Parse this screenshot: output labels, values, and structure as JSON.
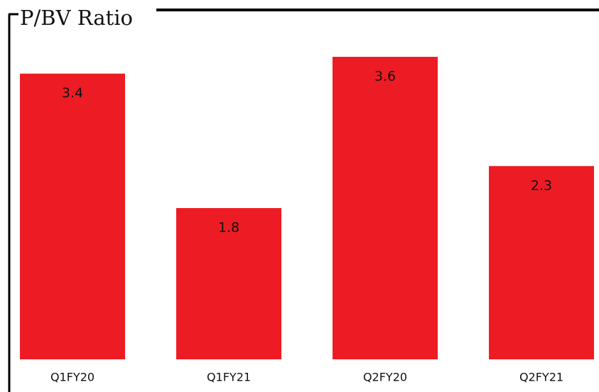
{
  "chart_data": {
    "type": "bar",
    "title": "P/BV Ratio",
    "categories": [
      "Q1FY20",
      "Q1FY21",
      "Q2FY20",
      "Q2FY21"
    ],
    "values": [
      3.4,
      1.8,
      3.6,
      2.3
    ],
    "color": "#ed1c24"
  }
}
